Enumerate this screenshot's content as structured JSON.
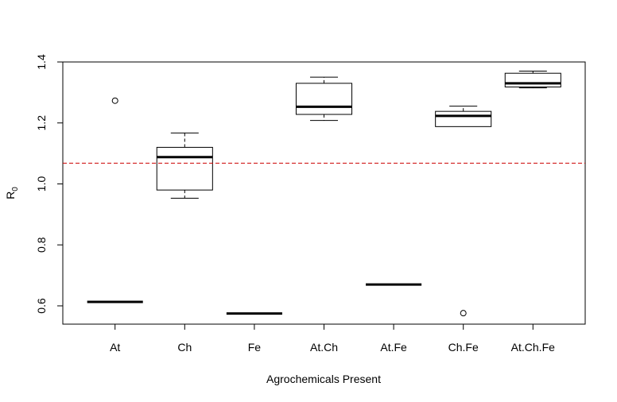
{
  "chart_data": {
    "type": "box",
    "xlabel": "Agrochemicals Present",
    "ylabel": {
      "main": "R",
      "sub": "0"
    },
    "ylim": [
      0.54,
      1.4
    ],
    "yticks": [
      0.6,
      0.8,
      1.0,
      1.2,
      1.4
    ],
    "ytick_labels": [
      "0.6",
      "0.8",
      "1.0",
      "1.2",
      "1.4"
    ],
    "categories": [
      "At",
      "Ch",
      "Fe",
      "At.Ch",
      "At.Fe",
      "Ch.Fe",
      "At.Ch.Fe"
    ],
    "boxes": [
      {
        "category": "At",
        "whisker_low": 0.613,
        "q1": 0.613,
        "median": 0.613,
        "q3": 0.613,
        "whisker_high": 0.613,
        "outliers": [
          1.273
        ]
      },
      {
        "category": "Ch",
        "whisker_low": 0.953,
        "q1": 0.98,
        "median": 1.088,
        "q3": 1.12,
        "whisker_high": 1.167,
        "outliers": []
      },
      {
        "category": "Fe",
        "whisker_low": 0.575,
        "q1": 0.575,
        "median": 0.575,
        "q3": 0.575,
        "whisker_high": 0.575,
        "outliers": []
      },
      {
        "category": "At.Ch",
        "whisker_low": 1.208,
        "q1": 1.228,
        "median": 1.253,
        "q3": 1.33,
        "whisker_high": 1.35,
        "outliers": []
      },
      {
        "category": "At.Fe",
        "whisker_low": 0.67,
        "q1": 0.67,
        "median": 0.67,
        "q3": 0.67,
        "whisker_high": 0.67,
        "outliers": []
      },
      {
        "category": "Ch.Fe",
        "whisker_low": 1.188,
        "q1": 1.188,
        "median": 1.223,
        "q3": 1.238,
        "whisker_high": 1.255,
        "outliers": [
          0.576
        ]
      },
      {
        "category": "At.Ch.Fe",
        "whisker_low": 1.315,
        "q1": 1.318,
        "median": 1.33,
        "q3": 1.363,
        "whisker_high": 1.37,
        "outliers": []
      }
    ],
    "reference_line": {
      "y": 1.068,
      "color": "#cc0000",
      "style": "dashed"
    },
    "box_fill": "#ffffff",
    "stroke_color": "#000000",
    "grid": false
  }
}
